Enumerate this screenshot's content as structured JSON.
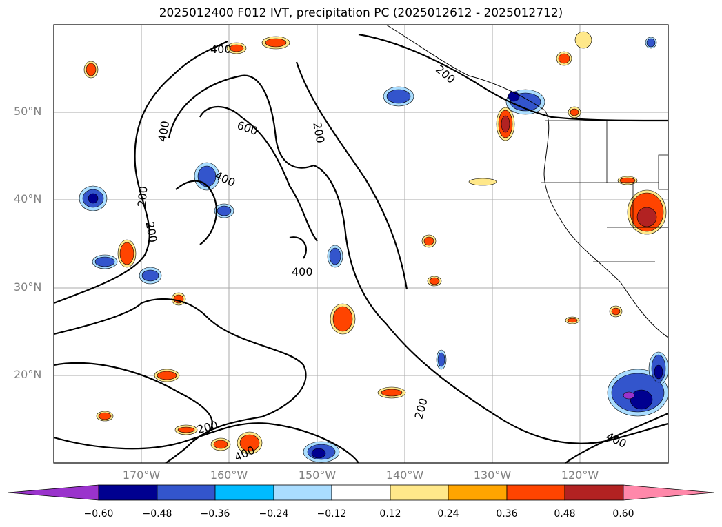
{
  "title": "2025012400 F012 IVT, precipitation PC (2025012612 - 2025012712)",
  "lat_labels": [
    "50°N",
    "40°N",
    "30°N",
    "20°N"
  ],
  "lon_labels": [
    "170°W",
    "160°W",
    "150°W",
    "140°W",
    "130°W",
    "120°W"
  ],
  "contour_labels": [
    "400",
    "200",
    "600",
    "400",
    "400",
    "200",
    "200",
    "200",
    "400",
    "200",
    "200",
    "400",
    "400"
  ],
  "colorbar": {
    "ticks": [
      "−0.60",
      "−0.48",
      "−0.36",
      "−0.24",
      "−0.12",
      "0.12",
      "0.24",
      "0.36",
      "0.48",
      "0.60"
    ],
    "colors": [
      "#9a33cc",
      "#000090",
      "#3355cc",
      "#00bbff",
      "#aaddff",
      "#ffffff",
      "#ffe88a",
      "#ffa500",
      "#ff4400",
      "#b22222",
      "#ff88aa"
    ]
  }
}
